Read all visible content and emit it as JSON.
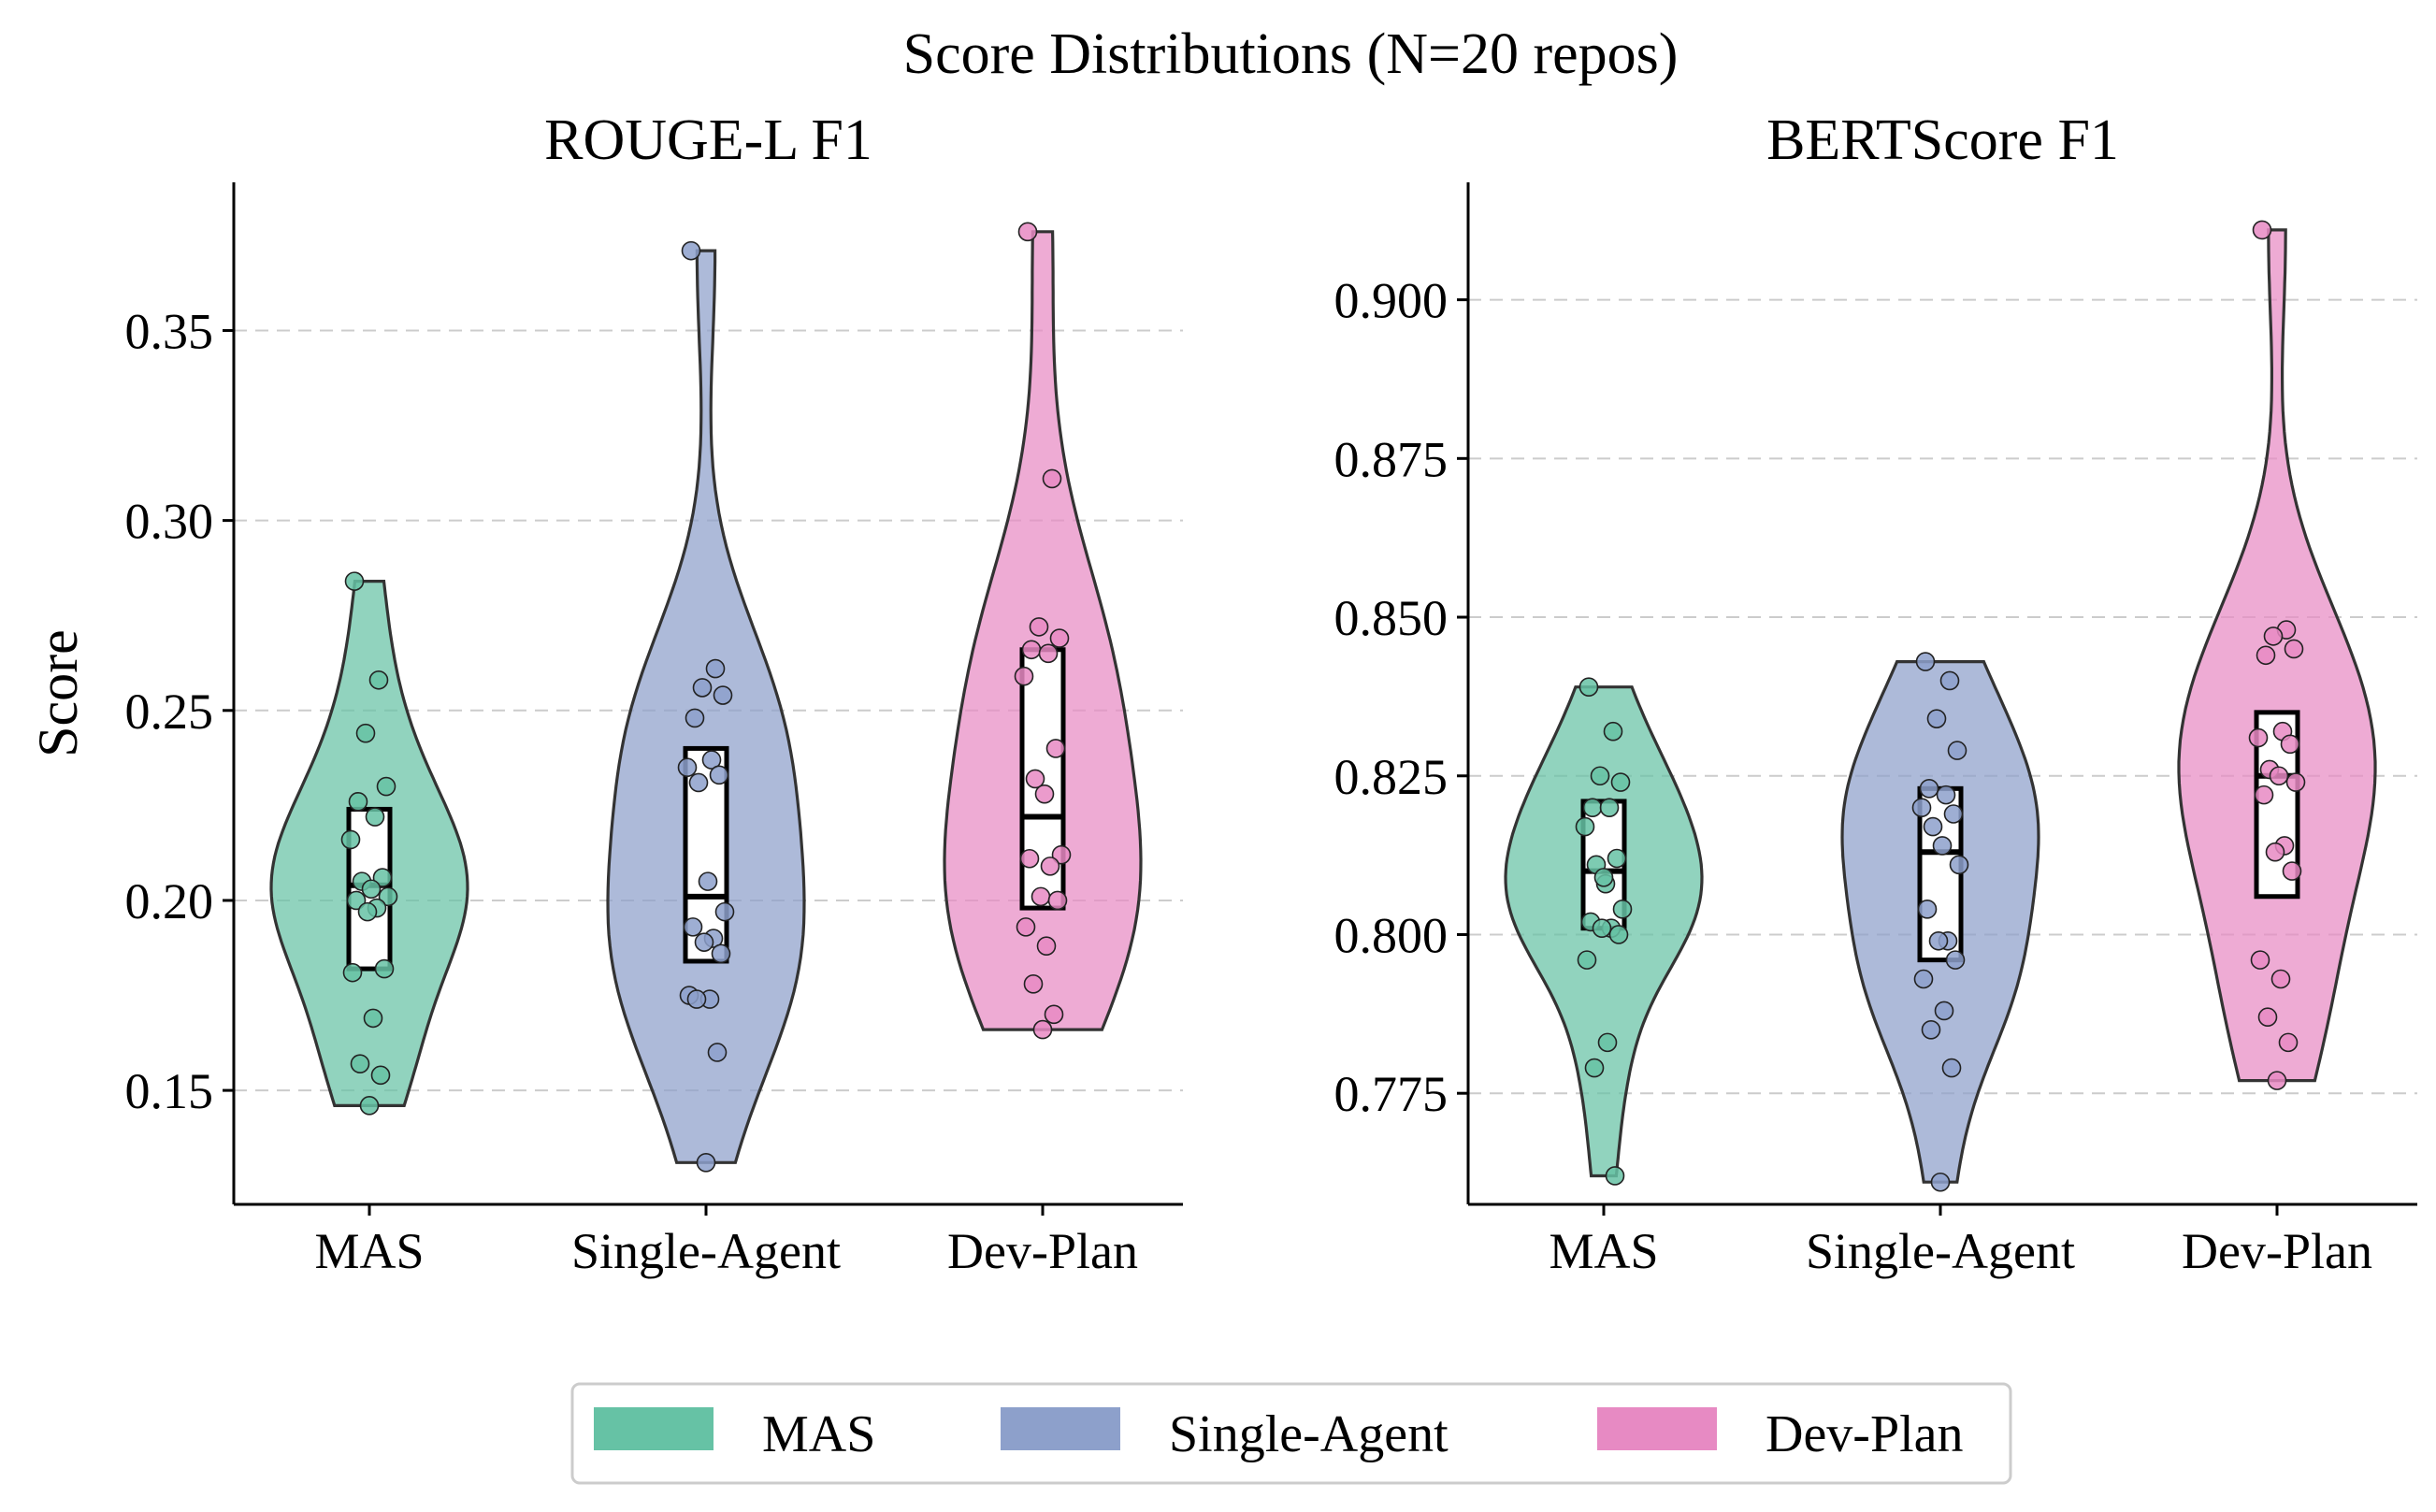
{
  "chart_data": {
    "type": "violin",
    "title": "Score Distributions (N=20 repos)",
    "ylabel": "Score",
    "categories": [
      "MAS",
      "Single-Agent",
      "Dev-Plan"
    ],
    "colors": {
      "MAS": "#66c2a5",
      "Single-Agent": "#8da0cb",
      "Dev-Plan": "#e78ac3"
    },
    "grid": "horizontal-dashed",
    "legend": {
      "placement": "bottom-center",
      "entries": [
        {
          "label": "MAS",
          "color": "#66c2a5"
        },
        {
          "label": "Single-Agent",
          "color": "#8da0cb"
        },
        {
          "label": "Dev-Plan",
          "color": "#e78ac3"
        }
      ]
    },
    "panels": [
      {
        "title": "ROUGE-L F1",
        "ylim": [
          0.12,
          0.389
        ],
        "yticks": [
          0.15,
          0.2,
          0.25,
          0.3,
          0.35
        ],
        "ytick_labels": [
          "0.15",
          "0.20",
          "0.25",
          "0.30",
          "0.35"
        ],
        "series": [
          {
            "name": "MAS",
            "min": 0.146,
            "max": 0.284,
            "q1": 0.182,
            "median": 0.204,
            "q3": 0.224,
            "points": [
              0.284,
              0.258,
              0.244,
              0.23,
              0.226,
              0.222,
              0.216,
              0.206,
              0.205,
              0.203,
              0.201,
              0.2,
              0.198,
              0.197,
              0.182,
              0.181,
              0.169,
              0.157,
              0.154,
              0.146
            ]
          },
          {
            "name": "Single-Agent",
            "min": 0.131,
            "max": 0.371,
            "q1": 0.184,
            "median": 0.201,
            "q3": 0.24,
            "points": [
              0.371,
              0.261,
              0.256,
              0.254,
              0.248,
              0.237,
              0.235,
              0.233,
              0.231,
              0.205,
              0.197,
              0.193,
              0.19,
              0.189,
              0.186,
              0.175,
              0.174,
              0.174,
              0.16,
              0.131
            ]
          },
          {
            "name": "Dev-Plan",
            "min": 0.166,
            "max": 0.376,
            "q1": 0.198,
            "median": 0.222,
            "q3": 0.266,
            "points": [
              0.376,
              0.311,
              0.272,
              0.269,
              0.266,
              0.265,
              0.259,
              0.24,
              0.232,
              0.228,
              0.212,
              0.211,
              0.209,
              0.201,
              0.2,
              0.193,
              0.188,
              0.178,
              0.17,
              0.166
            ]
          }
        ]
      },
      {
        "title": "BERTScore F1",
        "ylim": [
          0.7575,
          0.9185
        ],
        "yticks": [
          0.775,
          0.8,
          0.825,
          0.85,
          0.875,
          0.9
        ],
        "ytick_labels": [
          "0.775",
          "0.800",
          "0.825",
          "0.850",
          "0.875",
          "0.900"
        ],
        "series": [
          {
            "name": "MAS",
            "min": 0.762,
            "max": 0.839,
            "q1": 0.801,
            "median": 0.81,
            "q3": 0.821,
            "points": [
              0.839,
              0.832,
              0.825,
              0.824,
              0.82,
              0.82,
              0.817,
              0.812,
              0.811,
              0.808,
              0.804,
              0.802,
              0.801,
              0.801,
              0.8,
              0.796,
              0.783,
              0.779,
              0.762,
              0.809
            ]
          },
          {
            "name": "Single-Agent",
            "min": 0.761,
            "max": 0.843,
            "q1": 0.796,
            "median": 0.813,
            "q3": 0.823,
            "points": [
              0.843,
              0.84,
              0.834,
              0.829,
              0.823,
              0.822,
              0.82,
              0.819,
              0.817,
              0.814,
              0.811,
              0.804,
              0.799,
              0.799,
              0.796,
              0.793,
              0.788,
              0.785,
              0.779,
              0.761
            ]
          },
          {
            "name": "Dev-Plan",
            "min": 0.777,
            "max": 0.911,
            "q1": 0.806,
            "median": 0.825,
            "q3": 0.835,
            "points": [
              0.911,
              0.848,
              0.847,
              0.845,
              0.844,
              0.832,
              0.831,
              0.83,
              0.826,
              0.825,
              0.824,
              0.822,
              0.814,
              0.813,
              0.81,
              0.796,
              0.793,
              0.787,
              0.783,
              0.777
            ]
          }
        ]
      }
    ]
  }
}
